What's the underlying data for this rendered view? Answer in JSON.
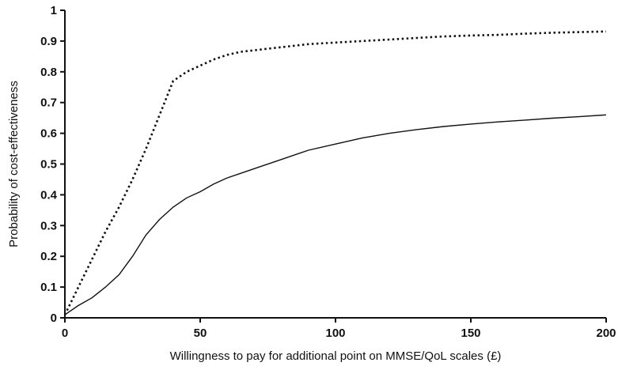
{
  "chart_data": {
    "type": "line",
    "title": "",
    "xlabel": "Willingness to pay for additional point on MMSE/QoL scales (£)",
    "ylabel": "Probability of cost-effectiveness",
    "xlim": [
      0,
      200
    ],
    "ylim": [
      0,
      1
    ],
    "x_ticks": [
      0,
      50,
      100,
      150,
      200
    ],
    "x_tick_labels": [
      "0",
      "50",
      "100",
      "150",
      "200"
    ],
    "y_ticks": [
      0,
      0.1,
      0.2,
      0.3,
      0.4,
      0.5,
      0.6,
      0.7,
      0.8,
      0.9,
      1
    ],
    "y_tick_labels": [
      "0",
      "0.1",
      "0.2",
      "0.3",
      "0.4",
      "0.5",
      "0.6",
      "0.7",
      "0.8",
      "0.9",
      "1"
    ],
    "grid": false,
    "legend": "none",
    "series": [
      {
        "style": "dotted",
        "color": "#111111",
        "x": [
          0,
          5,
          10,
          15,
          20,
          25,
          30,
          35,
          40,
          45,
          50,
          55,
          60,
          65,
          70,
          75,
          80,
          90,
          100,
          110,
          120,
          130,
          140,
          150,
          160,
          170,
          180,
          190,
          200
        ],
        "y": [
          0.01,
          0.1,
          0.19,
          0.28,
          0.36,
          0.45,
          0.55,
          0.66,
          0.77,
          0.8,
          0.82,
          0.84,
          0.855,
          0.865,
          0.87,
          0.875,
          0.88,
          0.89,
          0.895,
          0.9,
          0.905,
          0.91,
          0.915,
          0.918,
          0.92,
          0.924,
          0.927,
          0.929,
          0.931
        ]
      },
      {
        "style": "solid",
        "color": "#111111",
        "x": [
          0,
          5,
          10,
          15,
          20,
          25,
          30,
          35,
          40,
          45,
          50,
          55,
          60,
          65,
          70,
          80,
          90,
          100,
          110,
          120,
          130,
          140,
          150,
          160,
          170,
          180,
          190,
          200
        ],
        "y": [
          0.01,
          0.04,
          0.065,
          0.1,
          0.14,
          0.2,
          0.27,
          0.32,
          0.36,
          0.39,
          0.41,
          0.435,
          0.455,
          0.47,
          0.485,
          0.515,
          0.545,
          0.565,
          0.585,
          0.6,
          0.612,
          0.622,
          0.63,
          0.637,
          0.643,
          0.649,
          0.654,
          0.66
        ]
      }
    ]
  }
}
